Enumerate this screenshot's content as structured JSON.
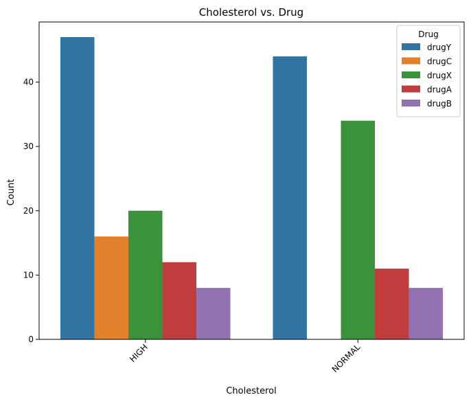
{
  "chart_data": {
    "type": "bar",
    "title": "Cholesterol vs. Drug",
    "xlabel": "Cholesterol",
    "ylabel": "Count",
    "categories": [
      "HIGH",
      "NORMAL"
    ],
    "ylim": [
      0,
      49.35
    ],
    "yticks": [
      0,
      10,
      20,
      30,
      40
    ],
    "xtick_rotation_deg": 45,
    "grid": false,
    "legend": {
      "title": "Drug",
      "placement": "top-right"
    },
    "series": [
      {
        "name": "drugY",
        "color": "#3274a1",
        "values": [
          47,
          44
        ]
      },
      {
        "name": "drugC",
        "color": "#e1812c",
        "values": [
          16,
          0
        ]
      },
      {
        "name": "drugX",
        "color": "#3a923a",
        "values": [
          20,
          34
        ]
      },
      {
        "name": "drugA",
        "color": "#c03d3e",
        "values": [
          12,
          11
        ]
      },
      {
        "name": "drugB",
        "color": "#9372b2",
        "values": [
          8,
          8
        ]
      }
    ]
  }
}
